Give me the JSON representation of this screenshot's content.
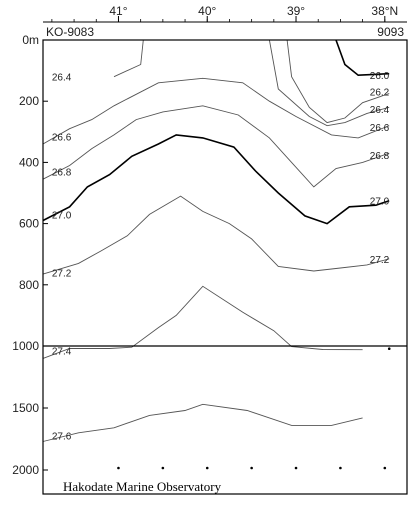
{
  "chart_data": {
    "type": "contour",
    "title": "",
    "station_left": "KO-9083",
    "station_right": "9093",
    "credit": "Hakodate Marine Observatory",
    "x_axis": {
      "unit": "longitude",
      "range": [
        41.85,
        37.75
      ],
      "ticks": [
        {
          "value": 41,
          "label": "41°"
        },
        {
          "value": 40,
          "label": "40°"
        },
        {
          "value": 39,
          "label": "39°"
        },
        {
          "value": 38,
          "label": "38°N"
        }
      ]
    },
    "y_axis": {
      "unit": "depth (m)",
      "inverted": true,
      "upper_panel_range": [
        0,
        1000
      ],
      "lower_panel_range": [
        1000,
        2000
      ],
      "ticks": [
        {
          "value": 0,
          "label": "0m"
        },
        {
          "value": 200,
          "label": "200"
        },
        {
          "value": 400,
          "label": "400"
        },
        {
          "value": 600,
          "label": "600"
        },
        {
          "value": 800,
          "label": "800"
        },
        {
          "value": 1000,
          "label": "1000"
        },
        {
          "value": 1500,
          "label": "1500"
        },
        {
          "value": 2000,
          "label": "2000"
        }
      ]
    },
    "station_marks_depth": 2000,
    "station_lons": [
      41.0,
      40.5,
      40.0,
      39.5,
      39.0,
      38.5,
      38.0
    ],
    "extra_marks": [
      {
        "lon": 37.95,
        "depth": 950
      }
    ],
    "isolines": [
      {
        "level": "26.4",
        "bold": false,
        "label_side": "left",
        "label_pos": [
          41.75,
          120
        ],
        "points": [
          [
            41.05,
            120
          ],
          [
            40.75,
            80
          ],
          [
            40.72,
            0
          ]
        ]
      },
      {
        "level": "26.0",
        "bold": true,
        "label_side": "right",
        "label_pos": [
          37.95,
          115
        ],
        "points": [
          [
            38.55,
            0
          ],
          [
            38.45,
            80
          ],
          [
            38.3,
            115
          ],
          [
            37.95,
            110
          ]
        ]
      },
      {
        "level": "26.2",
        "bold": false,
        "label_side": "right",
        "label_pos": [
          37.95,
          168
        ],
        "points": [
          [
            39.1,
            0
          ],
          [
            39.05,
            120
          ],
          [
            38.85,
            220
          ],
          [
            38.65,
            270
          ],
          [
            38.45,
            255
          ],
          [
            38.25,
            205
          ],
          [
            37.95,
            175
          ]
        ]
      },
      {
        "level": "26.4",
        "bold": false,
        "label_side": "right",
        "label_pos": [
          37.95,
          225
        ],
        "points": [
          [
            39.3,
            0
          ],
          [
            39.2,
            160
          ],
          [
            38.85,
            250
          ],
          [
            38.65,
            280
          ],
          [
            38.45,
            270
          ],
          [
            38.2,
            240
          ],
          [
            37.95,
            220
          ]
        ]
      },
      {
        "level": "26.6",
        "bold": false,
        "label_side": "both",
        "label_pos": [
          41.75,
          315
        ],
        "label_pos_right": [
          37.95,
          285
        ],
        "points": [
          [
            41.85,
            340
          ],
          [
            41.55,
            290
          ],
          [
            41.3,
            260
          ],
          [
            41.05,
            215
          ],
          [
            40.55,
            140
          ],
          [
            40.05,
            125
          ],
          [
            39.6,
            140
          ],
          [
            39.3,
            200
          ],
          [
            39.0,
            250
          ],
          [
            38.6,
            310
          ],
          [
            38.3,
            320
          ],
          [
            37.95,
            280
          ]
        ]
      },
      {
        "level": "26.8",
        "bold": false,
        "label_side": "both",
        "label_pos": [
          41.75,
          430
        ],
        "label_pos_right": [
          37.95,
          375
        ],
        "points": [
          [
            41.85,
            455
          ],
          [
            41.55,
            410
          ],
          [
            41.3,
            355
          ],
          [
            41.05,
            310
          ],
          [
            40.8,
            260
          ],
          [
            40.5,
            235
          ],
          [
            40.05,
            215
          ],
          [
            39.65,
            245
          ],
          [
            39.3,
            320
          ],
          [
            39.05,
            400
          ],
          [
            38.8,
            480
          ],
          [
            38.55,
            420
          ],
          [
            38.25,
            400
          ],
          [
            37.95,
            370
          ]
        ]
      },
      {
        "level": "27.0",
        "bold": true,
        "label_side": "both",
        "label_pos": [
          41.75,
          570
        ],
        "label_pos_right": [
          37.95,
          525
        ],
        "points": [
          [
            41.85,
            590
          ],
          [
            41.55,
            545
          ],
          [
            41.35,
            480
          ],
          [
            41.1,
            440
          ],
          [
            40.85,
            380
          ],
          [
            40.55,
            340
          ],
          [
            40.35,
            310
          ],
          [
            40.05,
            320
          ],
          [
            39.7,
            350
          ],
          [
            39.45,
            430
          ],
          [
            39.2,
            500
          ],
          [
            38.9,
            575
          ],
          [
            38.65,
            600
          ],
          [
            38.4,
            545
          ],
          [
            38.1,
            540
          ],
          [
            37.95,
            525
          ]
        ]
      },
      {
        "level": "27.2",
        "bold": false,
        "label_side": "both",
        "label_pos": [
          41.75,
          760
        ],
        "label_pos_right": [
          37.95,
          715
        ],
        "points": [
          [
            41.85,
            765
          ],
          [
            41.45,
            730
          ],
          [
            41.2,
            690
          ],
          [
            40.9,
            640
          ],
          [
            40.65,
            570
          ],
          [
            40.3,
            510
          ],
          [
            40.05,
            560
          ],
          [
            39.75,
            600
          ],
          [
            39.5,
            650
          ],
          [
            39.2,
            740
          ],
          [
            38.8,
            755
          ],
          [
            38.5,
            745
          ],
          [
            38.2,
            735
          ],
          [
            37.95,
            715
          ]
        ]
      },
      {
        "level": "27.4",
        "bold": false,
        "label_side": "left",
        "label_pos": [
          41.75,
          1035
        ],
        "points": [
          [
            41.85,
            1100
          ],
          [
            41.55,
            1020
          ],
          [
            41.1,
            1020
          ],
          [
            40.85,
            1010
          ],
          [
            40.55,
            940
          ],
          [
            40.35,
            900
          ],
          [
            40.05,
            805
          ],
          [
            39.6,
            890
          ],
          [
            39.25,
            950
          ],
          [
            39.05,
            1005
          ],
          [
            38.7,
            1028
          ],
          [
            38.25,
            1030
          ]
        ]
      },
      {
        "level": "27.6",
        "bold": false,
        "label_side": "left",
        "label_pos": [
          41.75,
          1720
        ],
        "points": [
          [
            41.85,
            1770
          ],
          [
            41.45,
            1700
          ],
          [
            41.05,
            1660
          ],
          [
            40.65,
            1560
          ],
          [
            40.25,
            1520
          ],
          [
            40.05,
            1470
          ],
          [
            39.55,
            1520
          ],
          [
            39.05,
            1640
          ],
          [
            38.6,
            1640
          ],
          [
            38.25,
            1580
          ]
        ]
      }
    ]
  }
}
